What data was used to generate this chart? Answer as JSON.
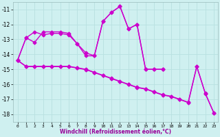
{
  "xlabel": "Windchill (Refroidissement éolien,°C)",
  "background_color": "#cff0f0",
  "grid_color": "#b8e0e0",
  "line_color": "#cc00cc",
  "s1_x": [
    0,
    1,
    2,
    3,
    4,
    5,
    6,
    7,
    8,
    9,
    10,
    11,
    12,
    13,
    14,
    15,
    16,
    17
  ],
  "s1_y": [
    -14.4,
    -12.9,
    -12.5,
    -12.7,
    -12.6,
    -12.6,
    -12.7,
    -13.3,
    -13.9,
    -14.1,
    -11.8,
    -11.2,
    -10.8,
    -12.3,
    -12.0,
    -15.0,
    -15.0,
    -15.0
  ],
  "s2_x": [
    0,
    1,
    2,
    3,
    4,
    5,
    6,
    7,
    8,
    9,
    10,
    11,
    12,
    13,
    14,
    15,
    16,
    17
  ],
  "s2_y": [
    -14.4,
    -12.9,
    -13.2,
    -12.5,
    -12.5,
    -12.5,
    -12.6,
    -13.3,
    -14.1,
    -14.1,
    -11.8,
    -11.2,
    -10.8,
    -12.3,
    -12.0,
    -15.0,
    -15.0,
    -15.0
  ],
  "s3_x": [
    0,
    1,
    2,
    3,
    4,
    5,
    6,
    7,
    8,
    9,
    10,
    11,
    12,
    13,
    14,
    15,
    16,
    17,
    18,
    19,
    20,
    21,
    22,
    23
  ],
  "s3_y": [
    -14.4,
    -14.8,
    -14.8,
    -14.8,
    -14.8,
    -14.8,
    -14.8,
    -14.9,
    -15.0,
    -15.2,
    -15.4,
    -15.6,
    -15.8,
    -16.0,
    -16.2,
    -16.3,
    -16.5,
    -16.7,
    -16.8,
    -17.0,
    -17.2,
    -14.8,
    -16.6,
    -17.9
  ],
  "s4_x": [
    0,
    1,
    2,
    3,
    4,
    5,
    6,
    7,
    8,
    9,
    10,
    11,
    12,
    13,
    14,
    15,
    16,
    17,
    18,
    19,
    20,
    21,
    22,
    23
  ],
  "s4_y": [
    -14.4,
    -14.82,
    -14.82,
    -14.82,
    -14.82,
    -14.82,
    -14.82,
    -14.92,
    -15.02,
    -15.22,
    -15.42,
    -15.62,
    -15.82,
    -16.02,
    -16.22,
    -16.32,
    -16.52,
    -16.72,
    -16.82,
    -17.02,
    -17.22,
    -14.82,
    -16.62,
    -17.92
  ],
  "ylim": [
    -18.5,
    -10.5
  ],
  "yticks": [
    -18,
    -17,
    -16,
    -15,
    -14,
    -13,
    -12,
    -11
  ],
  "xlim": [
    -0.5,
    23.5
  ],
  "xticks": [
    0,
    1,
    2,
    3,
    4,
    5,
    6,
    7,
    8,
    9,
    10,
    11,
    12,
    13,
    14,
    15,
    16,
    17,
    18,
    19,
    20,
    21,
    22,
    23
  ]
}
